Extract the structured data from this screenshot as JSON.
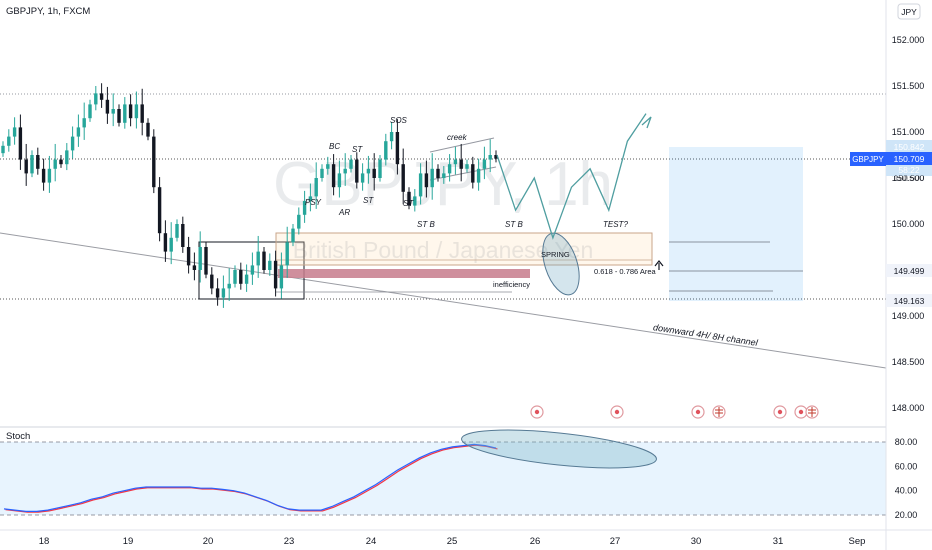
{
  "header": {
    "symbol": "GBPJPY, 1h, FXCM",
    "currency": "JPY"
  },
  "watermark": {
    "symbol": "GBPJPY, 1h",
    "name": "British Pound / Japanese Yen"
  },
  "price_scale": {
    "ticks": [
      "152.000",
      "151.500",
      "151.000",
      "150.500",
      "150.000",
      "149.500",
      "149.000",
      "148.500",
      "148.000"
    ],
    "badges": {
      "symbol": "GBPJPY",
      "last_price": "150.709",
      "box_top": "150.842",
      "box_count": "58:22",
      "box_mid": "150.500",
      "level_1": "149.499",
      "level_2": "149.163"
    }
  },
  "time_axis": {
    "labels": [
      "18",
      "19",
      "20",
      "23",
      "24",
      "25",
      "26",
      "27",
      "30",
      "31",
      "Sep"
    ]
  },
  "annotations": {
    "psy": "PSY",
    "bc": "BC",
    "st1": "ST",
    "ar": "AR",
    "st2": "ST",
    "sos": "SOS",
    "st3": "ST",
    "st_b1": "ST B",
    "st_b2": "ST B",
    "creek": "creek",
    "spring": "SPRING",
    "test": "TEST?",
    "fib_area": "0.618 - 0.786 Area",
    "inefficiency": "inefficiency",
    "channel": "downward 4H/ 8H channel"
  },
  "stoch": {
    "label": "Stoch",
    "ticks": [
      "80.00",
      "60.00",
      "40.00",
      "20.00"
    ]
  },
  "colors": {
    "bull": "#26a69a",
    "bear": "#131722",
    "stoch_k": "#2962ff",
    "stoch_d": "#f23645",
    "accent": "#2962ff"
  },
  "chart_data": [
    {
      "type": "candlestick",
      "title": "GBPJPY, 1h, FXCM",
      "ylim": [
        147.9,
        152.2
      ],
      "x_ticks": [
        "18",
        "19",
        "20",
        "23",
        "24",
        "25",
        "26",
        "27",
        "30",
        "31",
        "Sep"
      ],
      "closes": [
        150.85,
        150.95,
        151.05,
        150.7,
        150.55,
        150.75,
        150.6,
        150.45,
        150.6,
        150.7,
        150.65,
        150.8,
        150.95,
        151.05,
        151.15,
        151.3,
        151.42,
        151.35,
        151.2,
        151.25,
        151.1,
        151.3,
        151.15,
        151.3,
        151.1,
        150.95,
        150.4,
        149.9,
        149.7,
        149.85,
        150.0,
        149.75,
        149.55,
        149.5,
        149.75,
        149.45,
        149.3,
        149.2,
        149.3,
        149.35,
        149.5,
        149.35,
        149.45,
        149.55,
        149.7,
        149.5,
        149.6,
        149.3,
        149.55,
        149.8,
        149.95,
        150.1,
        150.25,
        150.3,
        150.5,
        150.6,
        150.65,
        150.4,
        150.55,
        150.6,
        150.7,
        150.45,
        150.55,
        150.6,
        150.5,
        150.7,
        150.9,
        151.0,
        150.65,
        150.35,
        150.2,
        150.3,
        150.55,
        150.4,
        150.6,
        150.5,
        150.55,
        150.65,
        150.7,
        150.6,
        150.65,
        150.45,
        150.6,
        150.7,
        150.75,
        150.71
      ],
      "stoch": [
        25,
        24,
        23,
        23,
        24,
        26,
        28,
        30,
        33,
        35,
        38,
        40,
        42,
        43,
        43,
        43,
        43,
        43,
        42,
        42,
        41,
        40,
        38,
        35,
        32,
        28,
        25,
        24,
        24,
        24,
        27,
        31,
        35,
        40,
        45,
        51,
        57,
        62,
        67,
        71,
        74,
        76,
        77,
        78,
        77,
        75
      ],
      "projection": [
        150.75,
        150.15,
        150.5,
        149.85,
        150.4,
        150.6,
        150.15,
        150.9,
        151.2
      ],
      "levels": [
        152.0,
        151.5,
        151.0,
        150.5,
        150.0,
        149.5,
        149.0,
        148.5,
        148.0
      ]
    }
  ]
}
